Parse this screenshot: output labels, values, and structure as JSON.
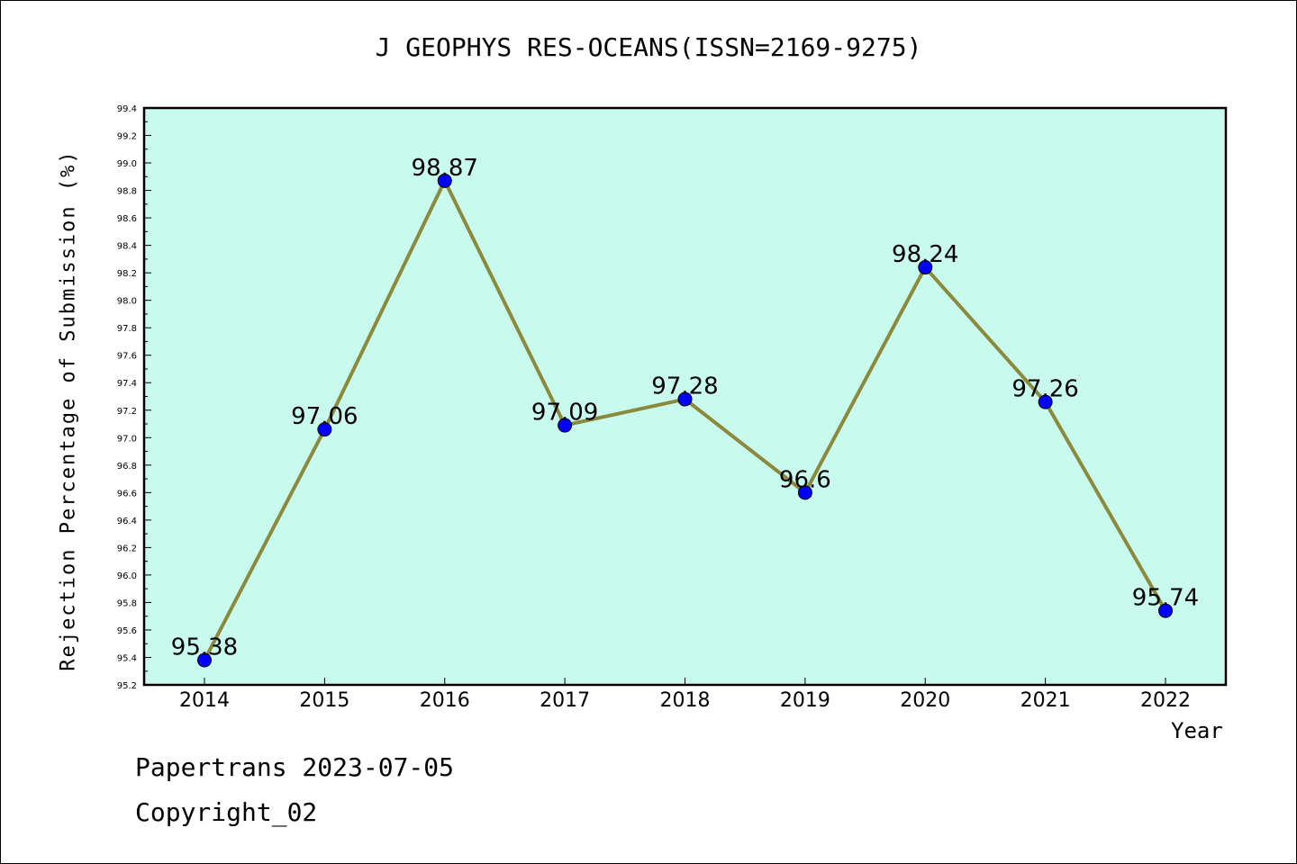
{
  "chart_data": {
    "type": "line",
    "title": "J GEOPHYS RES-OCEANS(ISSN=2169-9275)",
    "xlabel": "Year",
    "ylabel": "Rejection Percentage of Submission (%)",
    "categories": [
      "2014",
      "2015",
      "2016",
      "2017",
      "2018",
      "2019",
      "2020",
      "2021",
      "2022"
    ],
    "values": [
      95.38,
      97.06,
      98.87,
      97.09,
      97.28,
      96.6,
      98.24,
      97.26,
      95.74
    ],
    "data_labels": [
      "95.38",
      "97.06",
      "98.87",
      "97.09",
      "97.28",
      "96.6",
      "98.24",
      "97.26",
      "95.74"
    ],
    "ylim": [
      95.2,
      99.4
    ],
    "yticks": [
      "95.2",
      "95.4",
      "95.6",
      "95.8",
      "96.0",
      "96.2",
      "96.4",
      "96.6",
      "96.8",
      "97.0",
      "97.2",
      "97.4",
      "97.6",
      "97.8",
      "98.0",
      "98.2",
      "98.4",
      "98.6",
      "98.8",
      "99.0",
      "99.2",
      "99.4"
    ],
    "grid": false,
    "colors": {
      "plot_background": "#c8fbee",
      "line": "#8b8a3c",
      "marker": "#0000ff"
    }
  },
  "footer": {
    "line1": "Papertrans 2023-07-05",
    "line2": "Copyright_02"
  }
}
